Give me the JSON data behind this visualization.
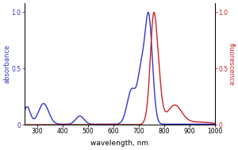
{
  "title": "",
  "xlabel": "wavelength, nm",
  "ylabel_left": "absorbance",
  "ylabel_right": "fluorescence",
  "xlim": [
    250,
    1000
  ],
  "ylim": [
    0,
    1.08
  ],
  "left_color": "#3333cc",
  "right_color": "#cc2222",
  "background": "#ffffff",
  "xticks": [
    300,
    400,
    500,
    600,
    700,
    800,
    900,
    1000
  ],
  "yticks_left": [
    0,
    0.5,
    1.0
  ],
  "yticks_right": [
    0,
    0.5,
    1.0
  ],
  "xlabel_fontsize": 6.5,
  "ylabel_fontsize": 6.0,
  "tick_fontsize": 5.5,
  "linewidth": 1.0
}
